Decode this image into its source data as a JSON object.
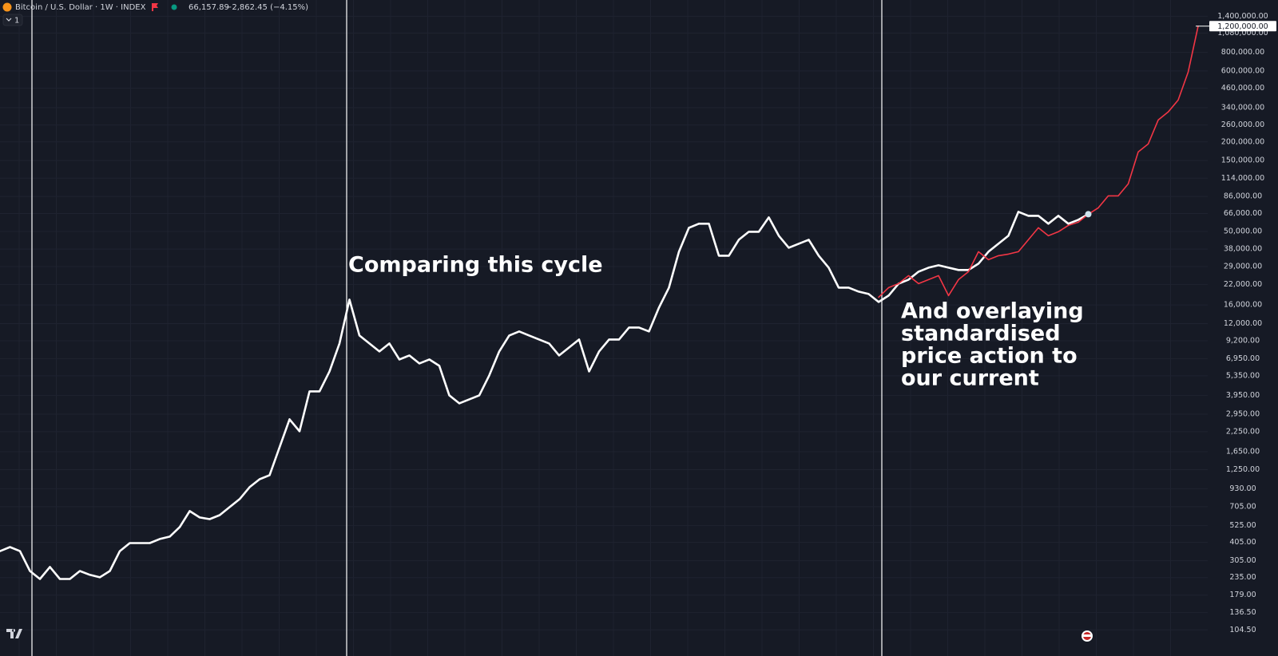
{
  "header": {
    "symbol": "Bitcoin / U.S. Dollar · 1W · INDEX",
    "price": "66,157.89",
    "change": "−2,862.45 (−4.15%)",
    "interval_count": "1"
  },
  "chart_data": {
    "type": "line",
    "yscale": "log",
    "ylim": [
      85,
      1800000
    ],
    "yticks": [
      {
        "value": 104.5,
        "label": "104.50"
      },
      {
        "value": 136.5,
        "label": "136.50"
      },
      {
        "value": 179,
        "label": "179.00"
      },
      {
        "value": 235,
        "label": "235.00"
      },
      {
        "value": 305,
        "label": "305.00"
      },
      {
        "value": 405,
        "label": "405.00"
      },
      {
        "value": 525,
        "label": "525.00"
      },
      {
        "value": 705,
        "label": "705.00"
      },
      {
        "value": 930,
        "label": "930.00"
      },
      {
        "value": 1250,
        "label": "1,250.00"
      },
      {
        "value": 1650,
        "label": "1,650.00"
      },
      {
        "value": 2250,
        "label": "2,250.00"
      },
      {
        "value": 2950,
        "label": "2,950.00"
      },
      {
        "value": 3950,
        "label": "3,950.00"
      },
      {
        "value": 5350,
        "label": "5,350.00"
      },
      {
        "value": 6950,
        "label": "6,950.00"
      },
      {
        "value": 9200,
        "label": "9,200.00"
      },
      {
        "value": 12000,
        "label": "12,000.00"
      },
      {
        "value": 16000,
        "label": "16,000.00"
      },
      {
        "value": 22000,
        "label": "22,000.00"
      },
      {
        "value": 29000,
        "label": "29,000.00"
      },
      {
        "value": 38000,
        "label": "38,000.00"
      },
      {
        "value": 50000,
        "label": "50,000.00"
      },
      {
        "value": 66000,
        "label": "66,000.00"
      },
      {
        "value": 86000,
        "label": "86,000.00"
      },
      {
        "value": 114000,
        "label": "114,000.00"
      },
      {
        "value": 150000,
        "label": "150,000.00"
      },
      {
        "value": 200000,
        "label": "200,000.00"
      },
      {
        "value": 260000,
        "label": "260,000.00"
      },
      {
        "value": 340000,
        "label": "340,000.00"
      },
      {
        "value": 460000,
        "label": "460,000.00"
      },
      {
        "value": 600000,
        "label": "600,000.00"
      },
      {
        "value": 800000,
        "label": "800,000.00"
      },
      {
        "value": 1080000,
        "label": "1,080,000.00"
      },
      {
        "value": 1400000,
        "label": "1,400,000.00"
      }
    ],
    "grid": true,
    "annotations": [
      {
        "lines": [
          "Comparing this cycle"
        ]
      },
      {
        "lines": [
          "And overlaying",
          "standardised",
          "price action to",
          "our current"
        ]
      }
    ],
    "last_price": {
      "value": 1200000,
      "label": "1,200,000.00"
    },
    "categories": [
      null,
      null,
      null,
      null,
      null,
      null,
      null,
      null,
      null,
      null,
      null,
      null,
      null,
      null,
      null,
      null,
      null,
      null,
      null,
      null,
      null,
      null,
      null,
      null,
      null,
      null,
      null,
      null,
      null,
      null,
      null,
      null,
      null,
      null,
      null,
      null,
      null,
      null,
      null,
      null,
      null,
      null,
      null,
      null,
      null,
      null,
      null,
      null,
      null,
      null,
      null,
      null,
      null,
      null,
      null,
      null,
      null,
      null,
      null,
      null,
      null,
      null,
      null,
      null,
      null,
      null,
      null,
      null,
      null,
      null,
      null,
      null,
      null,
      null,
      null,
      null,
      null,
      null,
      null,
      null,
      null,
      null,
      null,
      null,
      null,
      null,
      null,
      null,
      null,
      null,
      null,
      null,
      null,
      null,
      null,
      null,
      null,
      null,
      null,
      null,
      null,
      null,
      null,
      null,
      null,
      null,
      null,
      null,
      null,
      null,
      null,
      null,
      null,
      null,
      null,
      null,
      null,
      null,
      null,
      null,
      null
    ],
    "series": [
      {
        "color": "#ffffff",
        "values": [
          354,
          377,
          354,
          260,
          230,
          277,
          230,
          230,
          260,
          245,
          236,
          260,
          354,
          401,
          401,
          401,
          427,
          443,
          514,
          658,
          596,
          581,
          618,
          700,
          792,
          953,
          1078,
          1147,
          1768,
          2725,
          2264,
          4200,
          4200,
          5720,
          8815,
          17400,
          9980,
          8815,
          7790,
          8815,
          6885,
          7325,
          6475,
          6885,
          6240,
          3950,
          3490,
          3710,
          3950,
          5380,
          7790,
          9980,
          10620,
          9980,
          9380,
          8815,
          7325,
          8290,
          9380,
          5720,
          7790,
          9380,
          9380,
          11290,
          11290,
          10620,
          15380,
          20950,
          36530,
          52930,
          56320,
          56320,
          34350,
          34350,
          43950,
          49740,
          49740,
          62150,
          46760,
          38850,
          41320,
          43950,
          34350,
          28530,
          20950,
          20950,
          19690,
          18970,
          16760,
          18510,
          22280,
          23700,
          26820,
          28530,
          29600,
          28530,
          27500,
          27500,
          30350,
          36530,
          41320,
          46760,
          67760,
          63700,
          63700,
          56320,
          63700,
          56320,
          59880,
          65300,
          null,
          null,
          null,
          null,
          null,
          null,
          null,
          null,
          null,
          null,
          null
        ]
      },
      {
        "color": "#f23645",
        "values": [
          null,
          null,
          null,
          null,
          null,
          null,
          null,
          null,
          null,
          null,
          null,
          null,
          null,
          null,
          null,
          null,
          null,
          null,
          null,
          null,
          null,
          null,
          null,
          null,
          null,
          null,
          null,
          null,
          null,
          null,
          null,
          null,
          null,
          null,
          null,
          null,
          null,
          null,
          null,
          null,
          null,
          null,
          null,
          null,
          null,
          null,
          null,
          null,
          null,
          null,
          null,
          null,
          null,
          null,
          null,
          null,
          null,
          null,
          null,
          null,
          null,
          null,
          null,
          null,
          null,
          null,
          null,
          null,
          null,
          null,
          null,
          null,
          null,
          null,
          null,
          null,
          null,
          null,
          null,
          null,
          null,
          null,
          null,
          null,
          null,
          null,
          null,
          null,
          18050,
          20950,
          22280,
          25210,
          22280,
          23700,
          25210,
          18510,
          23700,
          26820,
          36530,
          32290,
          34350,
          35200,
          36530,
          43950,
          52930,
          46760,
          49740,
          54920,
          57700,
          65300,
          72080,
          86760,
          86760,
          104400,
          171200,
          193700,
          280700,
          317700,
          382300,
          589300,
          1200000
        ]
      }
    ]
  }
}
